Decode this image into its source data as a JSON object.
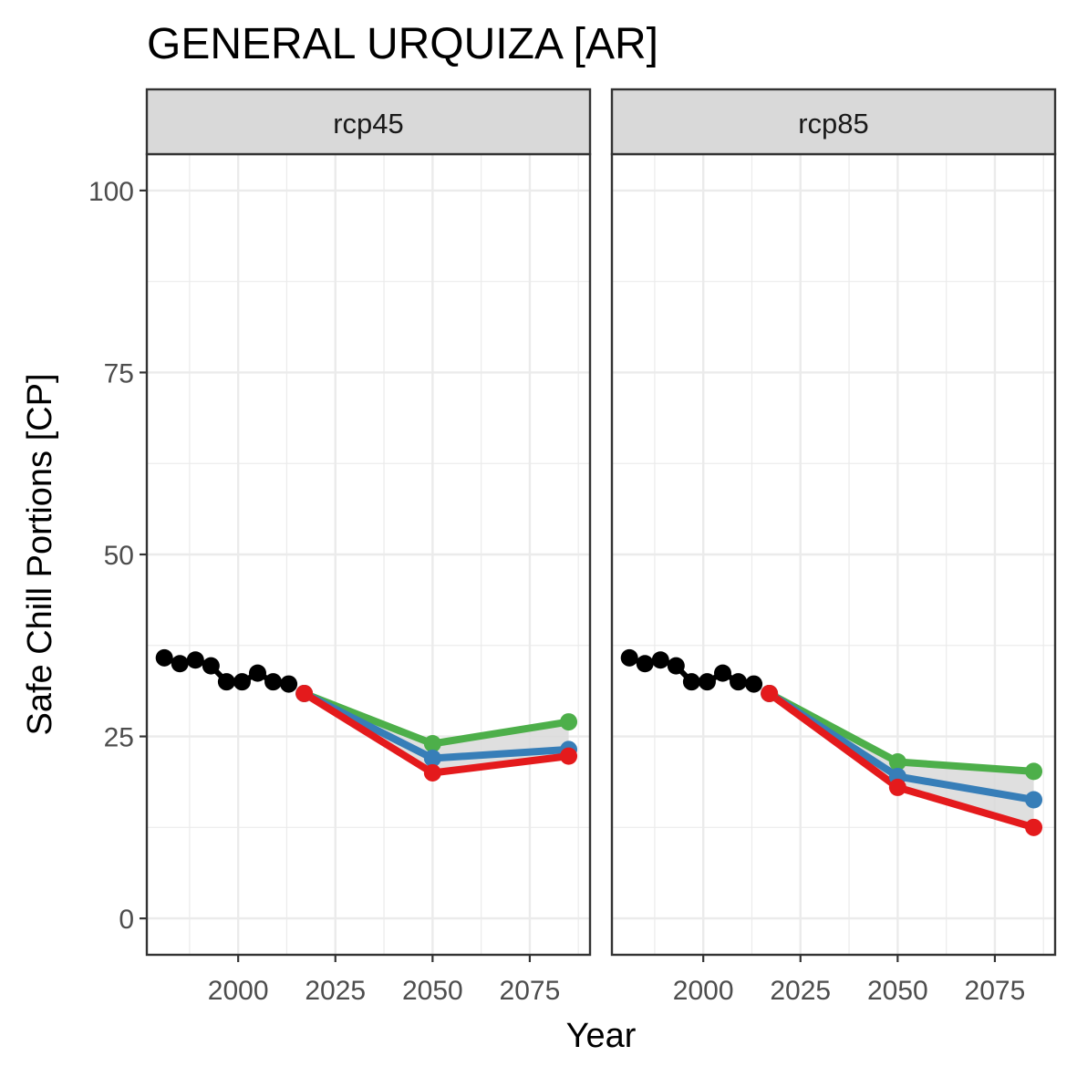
{
  "chart_data": {
    "type": "line",
    "title": "GENERAL URQUIZA [AR]",
    "xlabel": "Year",
    "ylabel": "Safe Chill Portions [CP]",
    "xlim": [
      1976.5,
      2090.5
    ],
    "ylim": [
      -5,
      105
    ],
    "x_ticks": [
      2000,
      2025,
      2050,
      2075
    ],
    "y_ticks": [
      0,
      25,
      50,
      75,
      100
    ],
    "grid": true,
    "legend": "none",
    "colors": {
      "historic": "#000000",
      "optimistic": "#4daf4a",
      "median": "#377eb8",
      "pessimistic": "#e41a1c",
      "ribbon": "#d9d9d9",
      "strip_bg": "#d9d9d9",
      "panel_border": "#333333",
      "grid": "#ebebeb"
    },
    "facets": [
      {
        "label": "rcp45",
        "historic": {
          "x": [
            1981,
            1985,
            1989,
            1993,
            1997,
            2001,
            2005,
            2009,
            2013
          ],
          "y": [
            35.8,
            35.0,
            35.5,
            34.7,
            32.5,
            32.5,
            33.7,
            32.5,
            32.2
          ]
        },
        "series": [
          {
            "key": "optimistic",
            "x": [
              2017,
              2050,
              2085
            ],
            "y": [
              30.9,
              24.0,
              27.0
            ]
          },
          {
            "key": "median",
            "x": [
              2017,
              2050,
              2085
            ],
            "y": [
              30.9,
              22.0,
              23.2
            ]
          },
          {
            "key": "pessimistic",
            "x": [
              2017,
              2050,
              2085
            ],
            "y": [
              30.9,
              20.0,
              22.3
            ]
          }
        ]
      },
      {
        "label": "rcp85",
        "historic": {
          "x": [
            1981,
            1985,
            1989,
            1993,
            1997,
            2001,
            2005,
            2009,
            2013
          ],
          "y": [
            35.8,
            35.0,
            35.5,
            34.7,
            32.5,
            32.5,
            33.7,
            32.5,
            32.2
          ]
        },
        "series": [
          {
            "key": "optimistic",
            "x": [
              2017,
              2050,
              2085
            ],
            "y": [
              30.9,
              21.5,
              20.2
            ]
          },
          {
            "key": "median",
            "x": [
              2017,
              2050,
              2085
            ],
            "y": [
              30.9,
              19.5,
              16.3
            ]
          },
          {
            "key": "pessimistic",
            "x": [
              2017,
              2050,
              2085
            ],
            "y": [
              30.9,
              18.0,
              12.5
            ]
          }
        ]
      }
    ]
  }
}
